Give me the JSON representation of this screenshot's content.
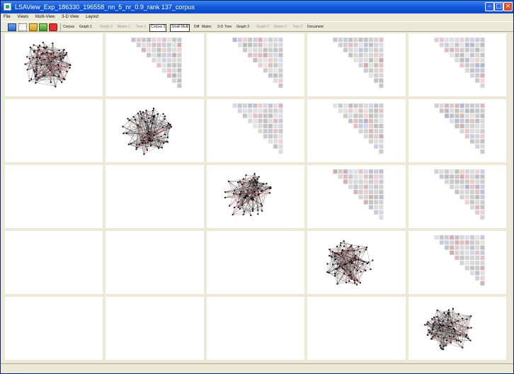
{
  "window": {
    "title": "LSAView_Exp_186330_196558_nn_5_nr_0.9_rank 137_corpus"
  },
  "menu": [
    "File",
    "Views",
    "Multi-View",
    "3-D View",
    "Layout"
  ],
  "toolbar": {
    "tabs": [
      {
        "label": "Corpus",
        "state": "normal"
      },
      {
        "label": "Graph 1",
        "state": "normal"
      },
      {
        "label": "Graph 2",
        "state": "disabled"
      },
      {
        "label": "Matrix 1",
        "state": "disabled"
      },
      {
        "label": "Tree 1",
        "state": "disabled"
      },
      {
        "label": "Corpus 3",
        "state": "selected"
      },
      {
        "label": "Small Multi",
        "state": "selected"
      },
      {
        "label": "Diff",
        "state": "normal"
      },
      {
        "label": "Matrix",
        "state": "normal"
      },
      {
        "label": "3-D",
        "state": "normal"
      },
      {
        "label": "Tree",
        "state": "normal"
      },
      {
        "label": "Graph 3",
        "state": "normal"
      },
      {
        "label": "Graph 2",
        "state": "disabled"
      },
      {
        "label": "Matrix 2",
        "state": "disabled"
      },
      {
        "label": "Tree 2",
        "state": "disabled"
      },
      {
        "label": "Document",
        "state": "normal"
      }
    ]
  },
  "grid": {
    "rows": 5,
    "cols": 5,
    "diagonal": "graph",
    "upper": "matrix",
    "lower": "empty"
  },
  "colors": {
    "accent_red": "#c83c3c",
    "edge_dark": "#222222",
    "titlebar": "#0b49c6"
  }
}
